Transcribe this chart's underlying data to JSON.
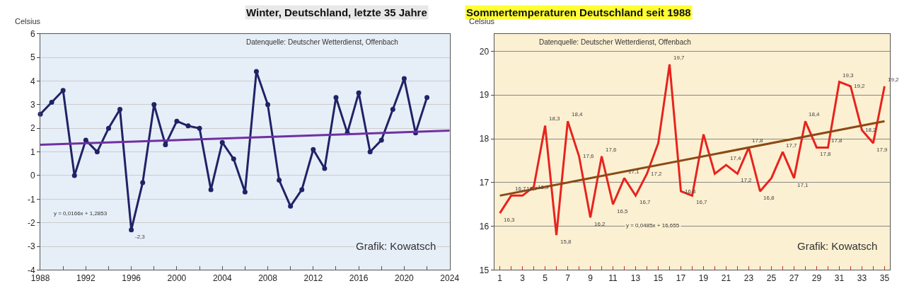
{
  "chart_data": [
    {
      "type": "line",
      "title": "Winter, Deutschland, letzte 35 Jahre",
      "subtitle": "Datenquelle: Deutscher Wetterdienst, Offenbach",
      "ylabel": "Celsius",
      "x": [
        1988,
        1989,
        1990,
        1991,
        1992,
        1993,
        1994,
        1995,
        1996,
        1997,
        1998,
        1999,
        2000,
        2001,
        2002,
        2003,
        2004,
        2005,
        2006,
        2007,
        2008,
        2009,
        2010,
        2011,
        2012,
        2013,
        2014,
        2015,
        2016,
        2017,
        2018,
        2019,
        2020,
        2021,
        2022
      ],
      "series": [
        {
          "color": "#1f2366",
          "marker": "circle",
          "values": [
            2.6,
            3.1,
            3.6,
            0.0,
            1.5,
            1.0,
            2.0,
            2.8,
            -2.3,
            -0.3,
            3.0,
            1.3,
            2.3,
            2.1,
            2.0,
            -0.6,
            1.4,
            0.7,
            -0.7,
            4.4,
            3.0,
            -0.2,
            -1.3,
            -0.6,
            1.1,
            0.3,
            3.3,
            1.8,
            3.5,
            1.0,
            1.5,
            2.8,
            4.1,
            1.8,
            3.3
          ],
          "value_labels": [
            null,
            null,
            null,
            null,
            null,
            null,
            null,
            null,
            "-2,3",
            null,
            null,
            null,
            null,
            null,
            null,
            null,
            null,
            null,
            null,
            null,
            null,
            null,
            null,
            null,
            null,
            null,
            null,
            null,
            null,
            null,
            null,
            null,
            null,
            null,
            null
          ]
        },
        {
          "type": "line",
          "color": "#7030a0",
          "x": [
            1988,
            2024
          ],
          "values": [
            1.3,
            1.9
          ]
        }
      ],
      "xlim": [
        1988,
        2024
      ],
      "xticks": [
        1988,
        {
          "value": 1990,
          "label": null
        },
        1992,
        {
          "value": 1994,
          "label": null
        },
        1996,
        {
          "value": 1998,
          "label": null
        },
        2000,
        {
          "value": 2002,
          "label": null
        },
        2004,
        {
          "value": 2006,
          "label": null
        },
        2008,
        {
          "value": 2010,
          "label": null
        },
        2012,
        {
          "value": 2014,
          "label": null
        },
        2016,
        {
          "value": 2018,
          "label": null
        },
        2020,
        {
          "value": 2022,
          "label": null
        },
        2024
      ],
      "ylim": [
        -4,
        6
      ],
      "yticks": [
        -4,
        -3,
        -2,
        -1,
        0,
        1,
        2,
        3,
        4,
        5,
        6
      ],
      "grid": "y",
      "annotations": [
        "y = 0,0166x + 1,2853",
        "Grafik: Kowatsch"
      ]
    },
    {
      "type": "line",
      "title": "Sommertemperaturen Deutschland seit 1988",
      "subtitle": "Datenquelle: Deutscher Wetterdienst, Offenbach",
      "ylabel": "Celsius",
      "x": [
        1,
        2,
        3,
        4,
        5,
        6,
        7,
        8,
        9,
        10,
        11,
        12,
        13,
        14,
        15,
        16,
        17,
        18,
        19,
        20,
        21,
        22,
        23,
        24,
        25,
        26,
        27,
        28,
        29,
        30,
        31,
        32,
        33,
        34,
        35
      ],
      "series": [
        {
          "color": "#e8231e",
          "marker": "none",
          "values": [
            16.3,
            16.7,
            16.7,
            16.9,
            18.3,
            15.8,
            18.4,
            17.6,
            16.2,
            17.6,
            16.5,
            17.1,
            16.7,
            17.2,
            17.9,
            19.7,
            16.8,
            16.7,
            18.1,
            17.2,
            17.4,
            17.2,
            17.8,
            16.8,
            17.1,
            17.7,
            17.1,
            18.4,
            17.8,
            17.8,
            19.3,
            19.2,
            18.2,
            17.9,
            19.2
          ],
          "value_labels": [
            "16,3",
            "16,7",
            "16,7",
            "16,9",
            "18,3",
            "15,8",
            "18,4",
            "17,6",
            "16,2",
            "17,6",
            "16,5",
            "17,1",
            "16,7",
            "17,2",
            null,
            "19,7",
            "16,8",
            "16,7",
            null,
            null,
            "17,4",
            "17,2",
            "17,8",
            "16,8",
            null,
            "17,7",
            "17,1",
            "18,4",
            "17,8",
            "17,8",
            "19,3",
            "19,2",
            "18,2",
            "17,9",
            "19,2"
          ]
        },
        {
          "type": "line",
          "color": "#8b4a14",
          "x": [
            1,
            35
          ],
          "values": [
            16.7,
            18.4
          ]
        }
      ],
      "xlim": [
        0.5,
        35.5
      ],
      "xticks": [
        1,
        {
          "value": 2,
          "label": null
        },
        3,
        {
          "value": 4,
          "label": null
        },
        5,
        {
          "value": 6,
          "label": null
        },
        7,
        {
          "value": 8,
          "label": null
        },
        9,
        {
          "value": 10,
          "label": null
        },
        11,
        {
          "value": 12,
          "label": null
        },
        13,
        {
          "value": 14,
          "label": null
        },
        15,
        {
          "value": 16,
          "label": null
        },
        17,
        {
          "value": 18,
          "label": null
        },
        19,
        {
          "value": 20,
          "label": null
        },
        21,
        {
          "value": 22,
          "label": null
        },
        23,
        {
          "value": 24,
          "label": null
        },
        25,
        {
          "value": 26,
          "label": null
        },
        27,
        {
          "value": 28,
          "label": null
        },
        29,
        {
          "value": 30,
          "label": null
        },
        31,
        {
          "value": 32,
          "label": null
        },
        33,
        {
          "value": 34,
          "label": null
        },
        35
      ],
      "ylim": [
        15,
        20.4
      ],
      "yticks": [
        15,
        16,
        17,
        18,
        19,
        20
      ],
      "grid": "y",
      "annotations": [
        "y = 0,0485x + 16,655",
        "Grafik: Kowatsch"
      ]
    }
  ]
}
